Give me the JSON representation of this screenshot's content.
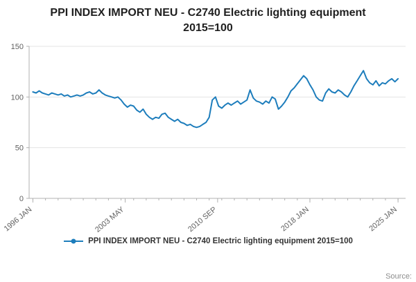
{
  "title": {
    "line1": "PPI INDEX IMPORT NEU - C2740 Electric lighting equipment",
    "line2": "2015=100"
  },
  "legend": {
    "label": "PPI INDEX IMPORT NEU - C2740 Electric lighting equipment 2015=100"
  },
  "source_label": "Source:",
  "colors": {
    "line": "#1d7dbc",
    "axis": "#b0b0b0",
    "grid": "#e3e3e3",
    "tick_text": "#5f5f5f"
  },
  "chart_data": {
    "type": "line",
    "title": "PPI INDEX IMPORT NEU - C2740 Electric lighting equipment 2015=100",
    "xlabel": "",
    "ylabel": "",
    "legend_position": "bottom",
    "grid": "horizontal",
    "x_start": 1996.0,
    "x_step": 0.25,
    "xlim": [
      1995.7,
      2025.6
    ],
    "ylim": [
      0,
      150
    ],
    "y_ticks": [
      0,
      50,
      100,
      150
    ],
    "x_ticks": [
      {
        "pos": 1996.0,
        "label": "1996 JAN"
      },
      {
        "pos": 2003.33,
        "label": "2003 MAY"
      },
      {
        "pos": 2010.67,
        "label": "2010 SEP"
      },
      {
        "pos": 2018.0,
        "label": "2018 JAN"
      },
      {
        "pos": 2025.0,
        "label": "2025 JAN"
      }
    ],
    "minor_ticks": {
      "start": 1996,
      "end": 2025,
      "step": 1
    },
    "values": [
      105,
      104,
      106,
      104,
      103,
      102,
      104,
      103,
      102,
      103,
      101,
      102,
      100,
      101,
      102,
      101,
      102,
      104,
      105,
      103,
      104,
      107,
      104,
      102,
      101,
      100,
      99,
      100,
      97,
      93,
      90,
      92,
      91,
      87,
      85,
      88,
      83,
      80,
      78,
      80,
      79,
      83,
      84,
      80,
      78,
      76,
      78,
      75,
      74,
      72,
      73,
      71,
      70,
      71,
      73,
      75,
      80,
      97,
      100,
      91,
      89,
      92,
      94,
      92,
      94,
      96,
      93,
      95,
      97,
      107,
      99,
      96,
      95,
      93,
      96,
      94,
      100,
      98,
      88,
      91,
      95,
      100,
      106,
      109,
      113,
      117,
      121,
      118,
      112,
      107,
      100,
      97,
      96,
      104,
      108,
      105,
      104,
      107,
      105,
      102,
      100,
      105,
      111,
      116,
      121,
      126,
      118,
      114,
      112,
      116,
      111,
      114,
      113,
      116,
      118,
      115,
      118
    ]
  }
}
